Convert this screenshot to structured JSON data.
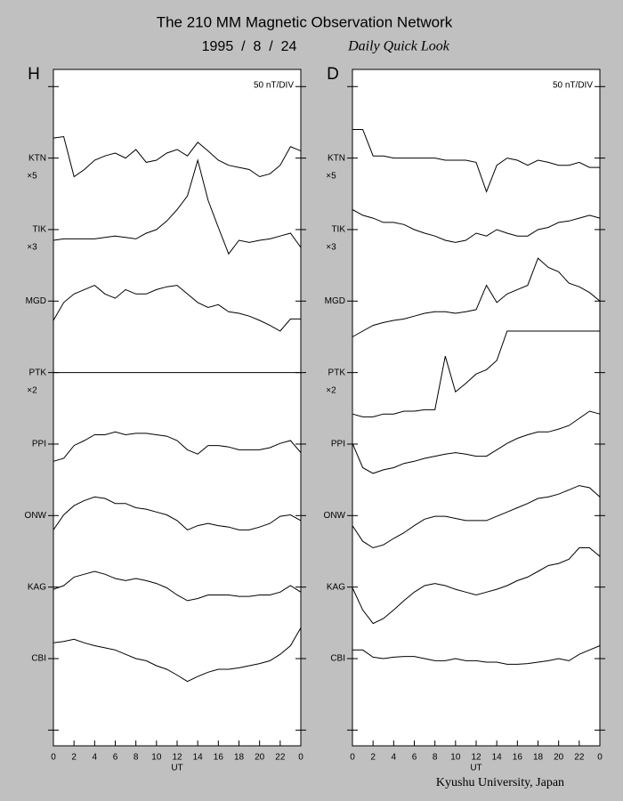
{
  "header": {
    "title": "The 210 MM Magnetic Observation Network",
    "date": "1995  /  8  /  24",
    "subtitle": "Daily Quick Look"
  },
  "footer": "Kyushu University, Japan",
  "chart_data": [
    {
      "type": "line",
      "title": "H",
      "scale_label": "50 nT/DIV",
      "xlabel": "UT",
      "xlim": [
        0,
        24
      ],
      "xticks": [
        0,
        2,
        4,
        6,
        8,
        10,
        12,
        14,
        16,
        18,
        20,
        22,
        {
          "value": 24,
          "label": "0"
        }
      ],
      "ylim": [
        -0.22,
        9.24
      ],
      "yticks": [
        {
          "value": 0,
          "label": null
        },
        {
          "value": 1,
          "label": "CBI"
        },
        {
          "value": 2,
          "label": "KAG"
        },
        {
          "value": 3,
          "label": "ONW"
        },
        {
          "value": 4,
          "label": "PPI"
        },
        {
          "value": 5,
          "label": "PTK"
        },
        {
          "value": 6,
          "label": "MGD"
        },
        {
          "value": 7,
          "label": "TIK"
        },
        {
          "value": 8,
          "label": "KTN"
        },
        {
          "value": 9,
          "label": null
        }
      ],
      "annotations": [
        {
          "text": "×5",
          "y": 7.75
        },
        {
          "text": "×3",
          "y": 6.75
        },
        {
          "text": "×2",
          "y": 4.75
        }
      ],
      "x": [
        0,
        1,
        2,
        3,
        4,
        5,
        6,
        7,
        8,
        9,
        10,
        11,
        12,
        13,
        14,
        15,
        16,
        17,
        18,
        19,
        20,
        21,
        22,
        23,
        24
      ],
      "series": [
        {
          "color": "#000000",
          "values": [
            8.28,
            8.3,
            7.74,
            7.84,
            7.97,
            8.03,
            8.07,
            8.0,
            8.12,
            7.94,
            7.97,
            8.07,
            8.12,
            8.03,
            8.22,
            8.1,
            7.97,
            7.9,
            7.87,
            7.84,
            7.74,
            7.78,
            7.9,
            8.16,
            8.1
          ]
        },
        {
          "color": "#000000",
          "values": [
            6.85,
            6.87,
            6.87,
            6.87,
            6.87,
            6.89,
            6.91,
            6.89,
            6.87,
            6.95,
            7.0,
            7.12,
            7.28,
            7.47,
            7.97,
            7.41,
            7.03,
            6.66,
            6.85,
            6.82,
            6.85,
            6.87,
            6.91,
            6.95,
            6.75
          ]
        },
        {
          "color": "#000000",
          "values": [
            5.73,
            5.98,
            6.1,
            6.16,
            6.22,
            6.1,
            6.04,
            6.16,
            6.1,
            6.1,
            6.16,
            6.2,
            6.22,
            6.1,
            5.98,
            5.91,
            5.95,
            5.85,
            5.83,
            5.79,
            5.73,
            5.66,
            5.58,
            5.75,
            5.75
          ]
        },
        {
          "color": "#000000",
          "values": [
            5,
            5,
            5,
            5,
            5,
            5,
            5,
            5,
            5,
            5,
            5,
            5,
            5,
            5,
            5,
            5,
            5,
            5,
            5,
            5,
            5,
            5,
            5,
            5,
            5
          ]
        },
        {
          "color": "#000000",
          "values": [
            3.76,
            3.8,
            3.98,
            4.05,
            4.13,
            4.13,
            4.17,
            4.13,
            4.15,
            4.15,
            4.13,
            4.11,
            4.05,
            3.92,
            3.86,
            3.98,
            3.98,
            3.96,
            3.92,
            3.92,
            3.92,
            3.95,
            4.01,
            4.05,
            3.88
          ]
        },
        {
          "color": "#000000",
          "values": [
            2.8,
            3.01,
            3.14,
            3.21,
            3.26,
            3.24,
            3.17,
            3.17,
            3.11,
            3.09,
            3.05,
            3.01,
            2.93,
            2.8,
            2.86,
            2.89,
            2.86,
            2.84,
            2.8,
            2.8,
            2.84,
            2.89,
            2.99,
            3.01,
            2.93
          ]
        },
        {
          "color": "#000000",
          "values": [
            1.97,
            2.02,
            2.14,
            2.18,
            2.22,
            2.18,
            2.12,
            2.09,
            2.12,
            2.09,
            2.05,
            1.99,
            1.89,
            1.81,
            1.84,
            1.89,
            1.89,
            1.89,
            1.87,
            1.87,
            1.89,
            1.89,
            1.93,
            2.02,
            1.93
          ]
        },
        {
          "color": "#000000",
          "values": [
            1.22,
            1.24,
            1.27,
            1.22,
            1.18,
            1.15,
            1.12,
            1.06,
            1.0,
            0.97,
            0.9,
            0.85,
            0.77,
            0.68,
            0.75,
            0.81,
            0.85,
            0.85,
            0.87,
            0.9,
            0.93,
            0.97,
            1.06,
            1.18,
            1.43
          ]
        }
      ]
    },
    {
      "type": "line",
      "title": "D",
      "scale_label": "50 nT/DIV",
      "xlabel": "UT",
      "xlim": [
        0,
        24
      ],
      "xticks": [
        0,
        2,
        4,
        6,
        8,
        10,
        12,
        14,
        16,
        18,
        20,
        22,
        {
          "value": 24,
          "label": "0"
        }
      ],
      "ylim": [
        -0.22,
        9.24
      ],
      "yticks": [
        {
          "value": 0,
          "label": null
        },
        {
          "value": 1,
          "label": "CBI"
        },
        {
          "value": 2,
          "label": "KAG"
        },
        {
          "value": 3,
          "label": "ONW"
        },
        {
          "value": 4,
          "label": "PPI"
        },
        {
          "value": 5,
          "label": "PTK"
        },
        {
          "value": 6,
          "label": "MGD"
        },
        {
          "value": 7,
          "label": "TIK"
        },
        {
          "value": 8,
          "label": "KTN"
        },
        {
          "value": 9,
          "label": null
        }
      ],
      "annotations": [
        {
          "text": "×5",
          "y": 7.75
        },
        {
          "text": "×3",
          "y": 6.75
        },
        {
          "text": "×2",
          "y": 4.75
        }
      ],
      "x": [
        0,
        1,
        2,
        3,
        4,
        5,
        6,
        7,
        8,
        9,
        10,
        11,
        12,
        13,
        14,
        15,
        16,
        17,
        18,
        19,
        20,
        21,
        22,
        23,
        24
      ],
      "series": [
        {
          "color": "#000000",
          "values": [
            8.4,
            8.4,
            8.03,
            8.03,
            8.0,
            8.0,
            8.0,
            8.0,
            8.0,
            7.97,
            7.97,
            7.97,
            7.94,
            7.53,
            7.9,
            8.0,
            7.97,
            7.9,
            7.97,
            7.94,
            7.9,
            7.9,
            7.94,
            7.87,
            7.87
          ]
        },
        {
          "color": "#000000",
          "values": [
            7.28,
            7.2,
            7.16,
            7.1,
            7.1,
            7.07,
            7.0,
            6.95,
            6.91,
            6.85,
            6.82,
            6.85,
            6.95,
            6.91,
            7.0,
            6.95,
            6.91,
            6.91,
            7.0,
            7.03,
            7.1,
            7.12,
            7.16,
            7.2,
            7.16
          ]
        },
        {
          "color": "#000000",
          "values": [
            5.5,
            5.58,
            5.66,
            5.7,
            5.73,
            5.75,
            5.79,
            5.83,
            5.85,
            5.85,
            5.83,
            5.85,
            5.88,
            6.22,
            5.98,
            6.1,
            6.16,
            6.22,
            6.6,
            6.47,
            6.41,
            6.25,
            6.2,
            6.12,
            6.0
          ]
        },
        {
          "color": "#000000",
          "values": [
            4.42,
            4.38,
            4.38,
            4.42,
            4.42,
            4.46,
            4.46,
            4.48,
            4.48,
            5.23,
            4.73,
            4.85,
            4.98,
            5.04,
            5.17,
            5.58,
            5.58,
            5.58,
            5.58,
            5.58,
            5.58,
            5.58,
            5.58,
            5.58,
            5.58
          ]
        },
        {
          "color": "#000000",
          "values": [
            4.01,
            3.67,
            3.59,
            3.64,
            3.67,
            3.73,
            3.76,
            3.8,
            3.83,
            3.86,
            3.88,
            3.86,
            3.83,
            3.83,
            3.92,
            4.01,
            4.08,
            4.13,
            4.17,
            4.17,
            4.21,
            4.26,
            4.36,
            4.46,
            4.42
          ]
        },
        {
          "color": "#000000",
          "values": [
            2.86,
            2.64,
            2.55,
            2.59,
            2.68,
            2.76,
            2.86,
            2.95,
            2.99,
            2.99,
            2.96,
            2.93,
            2.93,
            2.93,
            2.99,
            3.05,
            3.11,
            3.17,
            3.24,
            3.26,
            3.3,
            3.36,
            3.42,
            3.39,
            3.26
          ]
        },
        {
          "color": "#000000",
          "values": [
            1.99,
            1.68,
            1.49,
            1.56,
            1.68,
            1.81,
            1.93,
            2.02,
            2.05,
            2.02,
            1.97,
            1.93,
            1.89,
            1.93,
            1.97,
            2.02,
            2.09,
            2.14,
            2.22,
            2.3,
            2.33,
            2.39,
            2.55,
            2.55,
            2.43
          ]
        },
        {
          "color": "#000000",
          "values": [
            1.12,
            1.12,
            1.02,
            1.0,
            1.02,
            1.03,
            1.03,
            1.0,
            0.97,
            0.97,
            1.0,
            0.97,
            0.97,
            0.95,
            0.95,
            0.92,
            0.92,
            0.93,
            0.95,
            0.97,
            1.0,
            0.97,
            1.06,
            1.12,
            1.18
          ]
        }
      ]
    }
  ]
}
